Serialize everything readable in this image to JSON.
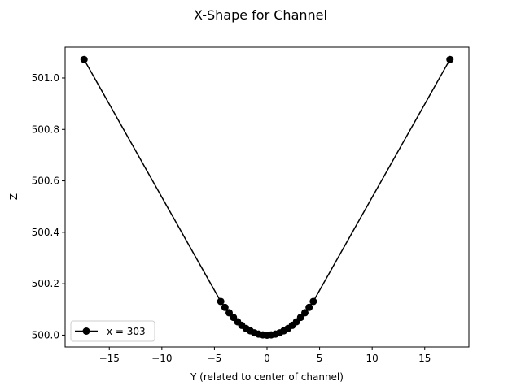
{
  "chart_data": {
    "type": "line",
    "title": "X-Shape for Channel",
    "xlabel": "Y (related to center of channel)",
    "ylabel": "Z",
    "xlim": [
      -19.2,
      19.2
    ],
    "ylim": [
      499.954,
      501.12
    ],
    "xticks": [
      -15,
      -10,
      -5,
      0,
      5,
      10,
      15
    ],
    "xtick_labels": [
      "−15",
      "−10",
      "−5",
      "0",
      "5",
      "10",
      "15"
    ],
    "yticks": [
      500.0,
      500.2,
      500.4,
      500.6,
      500.8,
      501.0
    ],
    "ytick_labels": [
      "500.0",
      "500.2",
      "500.4",
      "500.6",
      "500.8",
      "501.0"
    ],
    "grid": false,
    "legend": "lower-left",
    "series": [
      {
        "name": "x = 303",
        "color": "#000000",
        "marker": "circle",
        "x": [
          -17.4,
          -4.4,
          -4.0,
          -3.6,
          -3.2,
          -2.8,
          -2.4,
          -2.0,
          -1.6,
          -1.2,
          -0.8,
          -0.4,
          0.0,
          0.4,
          0.8,
          1.2,
          1.6,
          2.0,
          2.4,
          2.8,
          3.2,
          3.6,
          4.0,
          4.4,
          17.4
        ],
        "y": [
          501.072,
          500.131,
          500.108,
          500.087,
          500.069,
          500.052,
          500.038,
          500.026,
          500.017,
          500.009,
          500.004,
          500.001,
          500.0,
          500.001,
          500.004,
          500.009,
          500.017,
          500.026,
          500.038,
          500.052,
          500.069,
          500.087,
          500.108,
          500.131,
          501.072
        ]
      }
    ]
  }
}
